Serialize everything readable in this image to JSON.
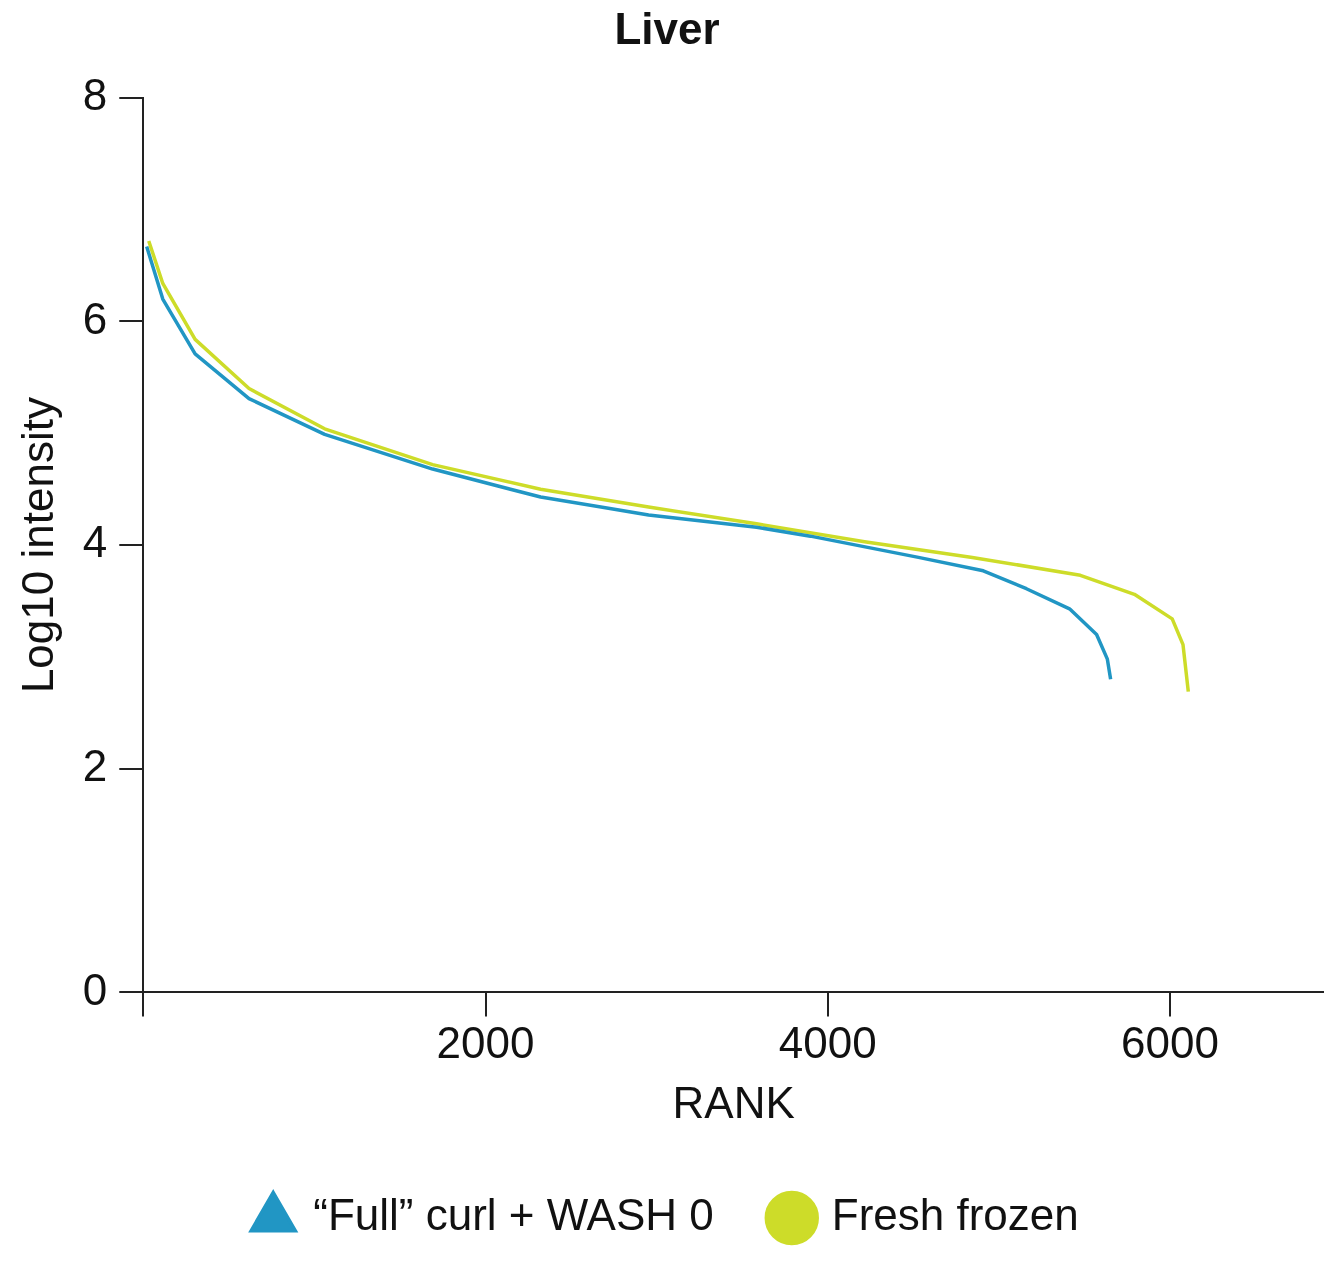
{
  "chart_data": {
    "type": "line",
    "title": "Liver",
    "xlabel": "RANK",
    "ylabel": "Log10 intensity",
    "xlim": [
      0,
      6900
    ],
    "xticks": [
      {
        "value": 0,
        "label": null
      },
      2000,
      4000,
      6000
    ],
    "ylim": [
      0,
      8
    ],
    "yticks": [
      0,
      2,
      4,
      6,
      8
    ],
    "grid": false,
    "legend": "bottom",
    "series": [
      {
        "name": "“Full” curl + WASH 0",
        "color": "#2196c4",
        "x": [
          20,
          114,
          303,
          618,
          1060,
          1691,
          2322,
          2953,
          3584,
          3899,
          4530,
          4909,
          5161,
          5413,
          5571,
          5634,
          5653
        ],
        "values": [
          6.67,
          6.2,
          5.71,
          5.31,
          4.99,
          4.68,
          4.43,
          4.27,
          4.16,
          4.08,
          3.89,
          3.77,
          3.61,
          3.43,
          3.2,
          2.98,
          2.8
        ]
      },
      {
        "name": "Fresh frozen",
        "color": "#cddc29",
        "x": [
          32,
          114,
          303,
          618,
          1060,
          1691,
          2322,
          2953,
          3584,
          4215,
          4845,
          5476,
          5792,
          6013,
          6076,
          6107
        ],
        "values": [
          6.72,
          6.34,
          5.84,
          5.4,
          5.04,
          4.72,
          4.5,
          4.34,
          4.19,
          4.03,
          3.89,
          3.73,
          3.56,
          3.34,
          3.11,
          2.69
        ]
      }
    ]
  }
}
